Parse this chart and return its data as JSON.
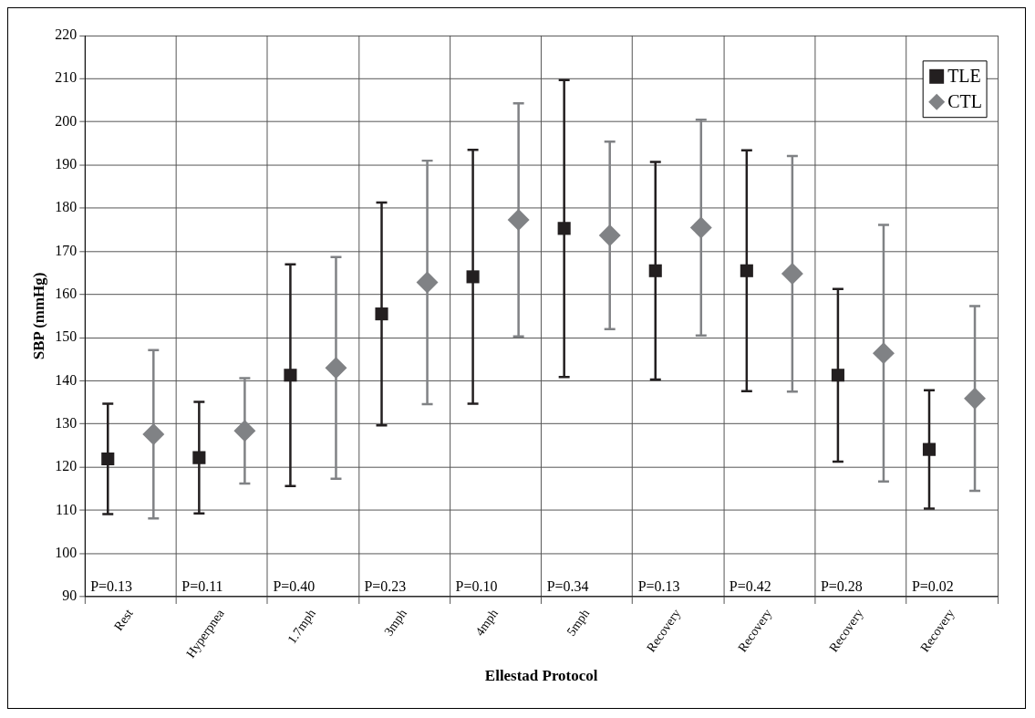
{
  "chart_data": {
    "type": "scatter",
    "xlabel": "Ellestad Protocol",
    "ylabel": "SBP (mmHg)",
    "categories": [
      "Rest",
      "Hyperpnea",
      "1.7mph",
      "3mph",
      "4mph",
      "5mph",
      "Recovery",
      "Recovery",
      "Recovery",
      "Recovery"
    ],
    "series": [
      {
        "name": "TLE",
        "color": "#231f20",
        "marker": "square",
        "values": [
          121.9,
          122.2,
          141.3,
          155.5,
          164.1,
          175.3,
          165.5,
          165.5,
          141.3,
          124.1
        ],
        "errors": [
          12.8,
          12.9,
          25.7,
          25.8,
          29.4,
          34.4,
          25.2,
          27.9,
          20.0,
          13.7
        ]
      },
      {
        "name": "CTL",
        "color": "#808285",
        "marker": "diamond",
        "values": [
          127.6,
          128.4,
          143.0,
          162.8,
          177.3,
          173.7,
          175.5,
          164.8,
          146.4,
          135.9
        ],
        "errors": [
          19.5,
          12.2,
          25.7,
          28.2,
          27.0,
          21.7,
          25.0,
          27.3,
          29.7,
          21.4
        ]
      }
    ],
    "ylim": [
      90,
      220
    ],
    "yticks": [
      90,
      100,
      110,
      120,
      130,
      140,
      150,
      160,
      170,
      180,
      190,
      200,
      210,
      220
    ],
    "grid": true,
    "legend": "top right",
    "annotations": [
      "P=0.13",
      "P=0.11",
      "P=0.40",
      "P=0.23",
      "P=0.10",
      "P=0.34",
      "P=0.13",
      "P=0.42",
      "P=0.28",
      "P=0.02"
    ]
  }
}
